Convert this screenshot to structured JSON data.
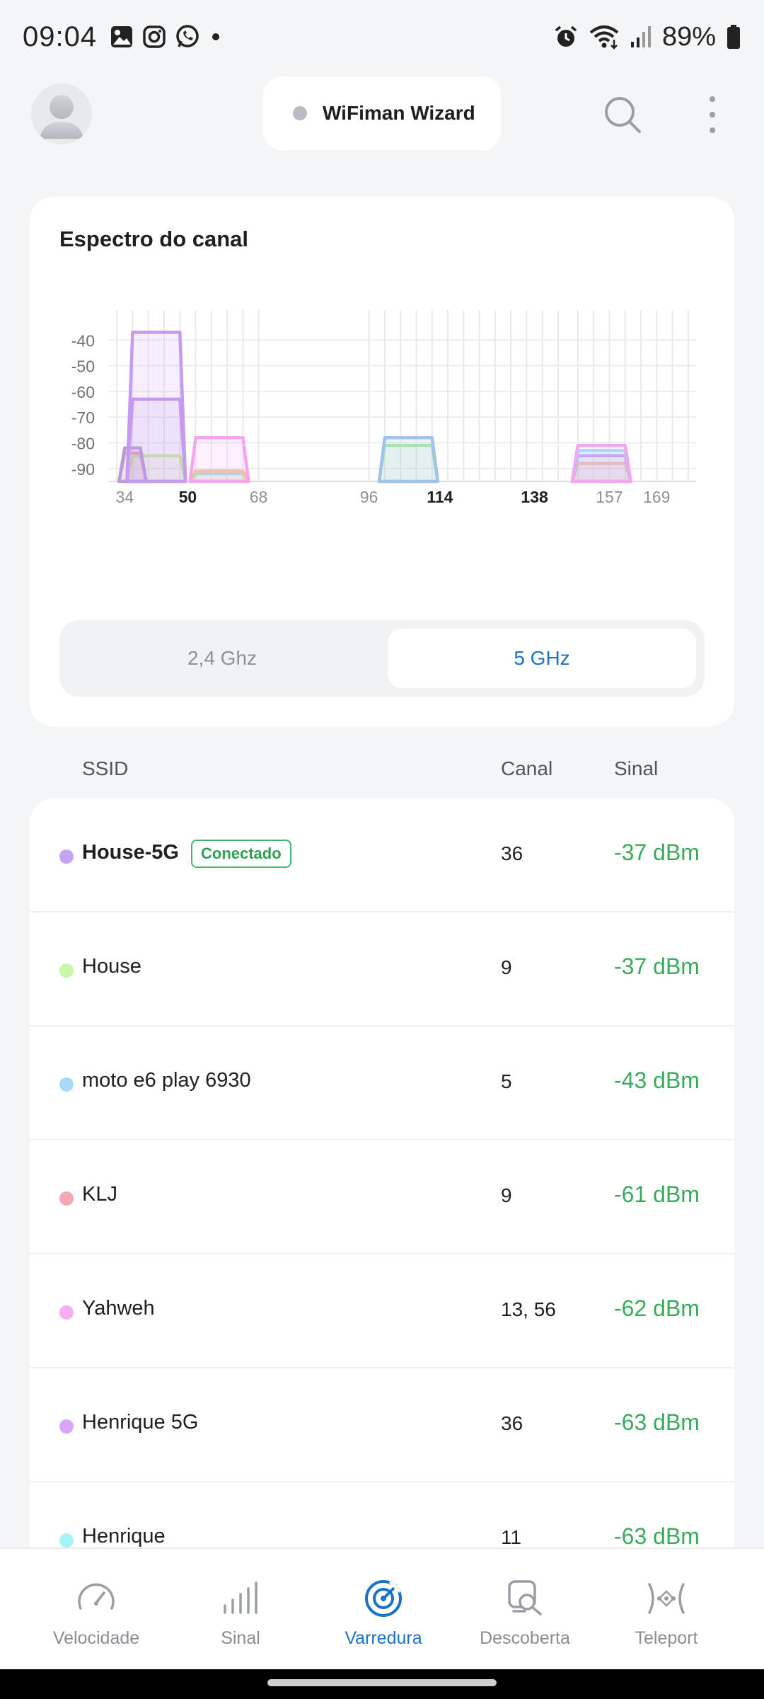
{
  "status_bar": {
    "time": "09:04",
    "battery_text": "89%",
    "left_icons": [
      "gallery-icon",
      "instagram-icon",
      "whatsapp-icon",
      "dot-icon"
    ],
    "right_icons": [
      "alarm-icon",
      "wifi-icon",
      "cell-signal-icon",
      "battery-icon"
    ]
  },
  "header": {
    "wizard_label": "WiFiman Wizard"
  },
  "spectrum": {
    "title": "Espectro do canal",
    "band_options": [
      "2,4 Ghz",
      "5 GHz"
    ],
    "selected_band": "5 GHz",
    "chart_data": {
      "type": "area",
      "title": "",
      "ylim": [
        -95,
        -30
      ],
      "yticks": [
        -40,
        -50,
        -60,
        -70,
        -80,
        -90
      ],
      "xticks": [
        {
          "label": "34",
          "ch": 34,
          "bold": false
        },
        {
          "label": "50",
          "ch": 50,
          "bold": true
        },
        {
          "label": "68",
          "ch": 68,
          "bold": false
        },
        {
          "label": "96",
          "ch": 96,
          "bold": false
        },
        {
          "label": "114",
          "ch": 114,
          "bold": true
        },
        {
          "label": "138",
          "ch": 138,
          "bold": true
        },
        {
          "label": "157",
          "ch": 157,
          "bold": false
        },
        {
          "label": "169",
          "ch": 169,
          "bold": false
        }
      ],
      "grid": true,
      "series": [
        {
          "from": 36,
          "to": 48,
          "level": -37,
          "color": "#c79af2"
        },
        {
          "from": 36,
          "to": 48,
          "level": -63,
          "color": "#c79af2"
        },
        {
          "from": 34,
          "to": 38,
          "level": -82,
          "color": "#b79bd6"
        },
        {
          "from": 34,
          "to": 38,
          "level": -84,
          "color": "#f3a0b0"
        },
        {
          "from": 36,
          "to": 48,
          "level": -85,
          "color": "#c9f29a"
        },
        {
          "from": 52,
          "to": 64,
          "level": -78,
          "color": "#f7a4f0"
        },
        {
          "from": 52,
          "to": 64,
          "level": -91,
          "color": "#f5c39a"
        },
        {
          "from": 52,
          "to": 64,
          "level": -92,
          "color": "#8fe8ef"
        },
        {
          "from": 100,
          "to": 112,
          "level": -78,
          "color": "#9fc2ef"
        },
        {
          "from": 100,
          "to": 112,
          "level": -81,
          "color": "#a4eca1"
        },
        {
          "from": 149,
          "to": 161,
          "level": -81,
          "color": "#f7a4f0"
        },
        {
          "from": 149,
          "to": 161,
          "level": -83,
          "color": "#8fe8ef"
        },
        {
          "from": 149,
          "to": 161,
          "level": -85,
          "color": "#c79af2"
        },
        {
          "from": 149,
          "to": 161,
          "level": -88,
          "color": "#f5c39a"
        }
      ]
    }
  },
  "list_header": {
    "ssid": "SSID",
    "canal": "Canal",
    "sinal": "Sinal"
  },
  "networks": [
    {
      "ssid": "House-5G",
      "canal": "36",
      "sinal": "-37 dBm",
      "color": "#c4a3f1",
      "connected": true,
      "badge": "Conectado"
    },
    {
      "ssid": "House",
      "canal": "9",
      "sinal": "-37 dBm",
      "color": "#c9f7a8",
      "connected": false
    },
    {
      "ssid": "moto e6 play 6930",
      "canal": "5",
      "sinal": "-43 dBm",
      "color": "#a8d8f7",
      "connected": false
    },
    {
      "ssid": "KLJ",
      "canal": "9",
      "sinal": "-61 dBm",
      "color": "#f7a6b4",
      "connected": false
    },
    {
      "ssid": "Yahweh",
      "canal": "13, 56",
      "sinal": "-62 dBm",
      "color": "#f7aef0",
      "connected": false
    },
    {
      "ssid": "Henrique 5G",
      "canal": "36",
      "sinal": "-63 dBm",
      "color": "#d7a6f7",
      "connected": false
    },
    {
      "ssid": "Henrique",
      "canal": "11",
      "sinal": "-63 dBm",
      "color": "#a6f2f5",
      "connected": false
    }
  ],
  "bottom_nav": [
    {
      "label": "Velocidade",
      "icon": "speedometer-icon",
      "active": false
    },
    {
      "label": "Sinal",
      "icon": "signal-bars-icon",
      "active": false
    },
    {
      "label": "Varredura",
      "icon": "radar-icon",
      "active": true
    },
    {
      "label": "Descoberta",
      "icon": "device-search-icon",
      "active": false
    },
    {
      "label": "Teleport",
      "icon": "teleport-icon",
      "active": false
    }
  ]
}
